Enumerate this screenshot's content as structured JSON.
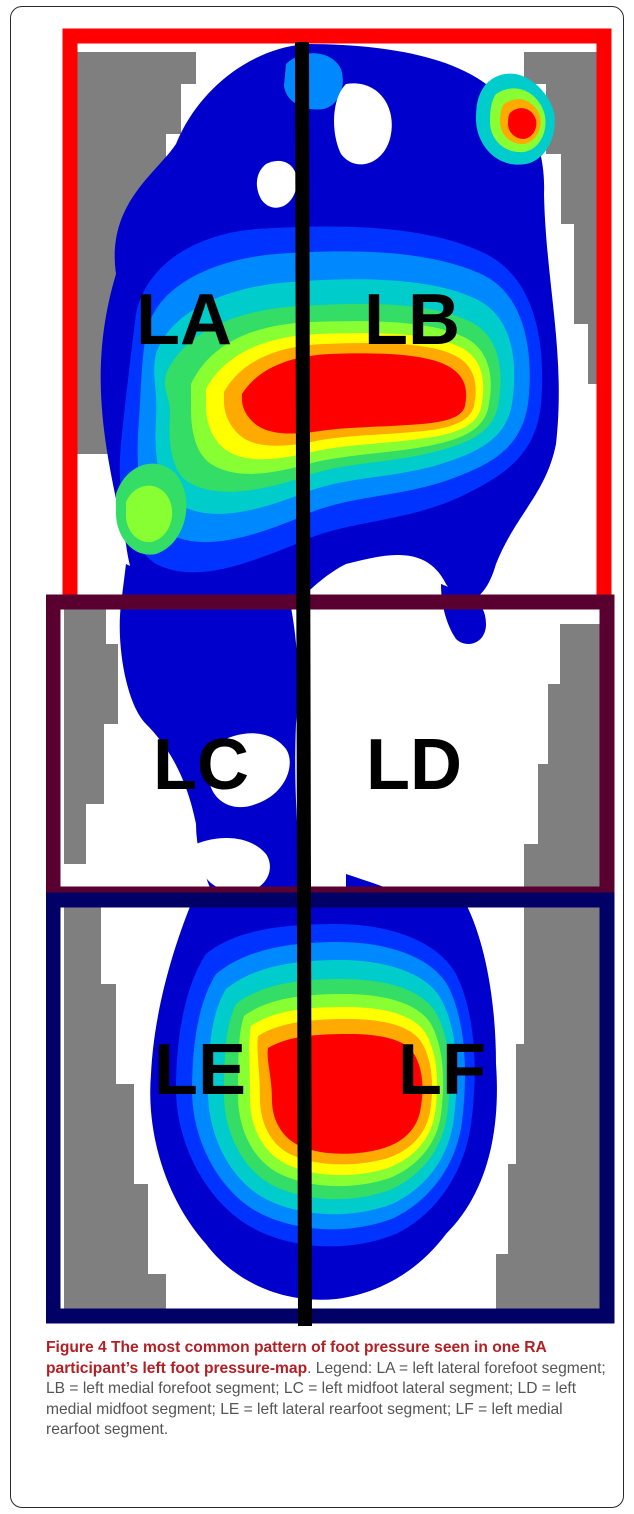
{
  "figure": {
    "segments": [
      {
        "id": "LA",
        "label": "LA"
      },
      {
        "id": "LB",
        "label": "LB"
      },
      {
        "id": "LC",
        "label": "LC"
      },
      {
        "id": "LD",
        "label": "LD"
      },
      {
        "id": "LE",
        "label": "LE"
      },
      {
        "id": "LF",
        "label": "LF"
      }
    ],
    "colors": {
      "forefoot_box": "#ff0000",
      "midfoot_box": "#5a0030",
      "rearfoot_box": "#000066",
      "divider": "#000000",
      "grey_background": "#7f7f7f",
      "pressure_scale": [
        "#0000cc",
        "#0033ff",
        "#0088ff",
        "#00cccc",
        "#33dd66",
        "#88ff33",
        "#ffff00",
        "#ffaa00",
        "#ff0000"
      ]
    }
  },
  "caption": {
    "title": "Figure 4 The most common pattern of foot pressure seen in one RA participant’s left foot pressure-map",
    "period": ".",
    "body": " Legend: LA = left lateral forefoot segment; LB = left medial forefoot segment; LC = left midfoot lateral segment; LD = left medial midfoot segment; LE = left lateral rearfoot segment; LF = left medial rearfoot segment."
  }
}
